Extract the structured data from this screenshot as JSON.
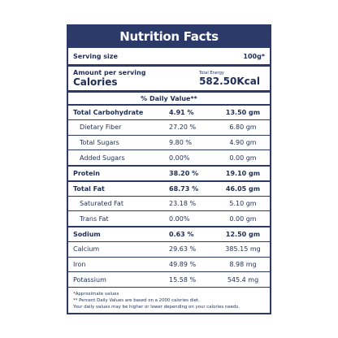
{
  "header": {
    "title": "Nutrition Facts"
  },
  "serving": {
    "label": "Serving size",
    "value": "100g*"
  },
  "calories": {
    "label1": "Amount per serving",
    "label2": "Calories",
    "energy_label": "Total Energy",
    "energy_value": "582.50Kcal"
  },
  "daily_value_header": "% Daily Value**",
  "rows": [
    {
      "name": "Total Carbohydrate",
      "percent": "4.91 %",
      "amount": "13.50 gm"
    },
    {
      "name": "Dietary Fiber",
      "percent": "27.20 %",
      "amount": "6.80 gm"
    },
    {
      "name": "Total Sugars",
      "percent": "9.80 %",
      "amount": "4.90 gm"
    },
    {
      "name": "Added Sugars",
      "percent": "0.00%",
      "amount": "0.00 gm"
    },
    {
      "name": "Protein",
      "percent": "38.20 %",
      "amount": "19.10 gm"
    },
    {
      "name": "Total Fat",
      "percent": "68.73 %",
      "amount": "46.05 gm"
    },
    {
      "name": "Saturated Fat",
      "percent": "23.18 %",
      "amount": "5.10 gm"
    },
    {
      "name": "Trans Fat",
      "percent": "0.00%",
      "amount": "0.00 gm"
    },
    {
      "name": "Sodium",
      "percent": "0.63 %",
      "amount": "12.50 gm"
    },
    {
      "name": "Calcium",
      "percent": "29.63 %",
      "amount": "385.15 mg"
    },
    {
      "name": "Iron",
      "percent": "49.89 %",
      "amount": "8.98 mg"
    },
    {
      "name": "Potassium",
      "percent": "15.58 %",
      "amount": "545.4 mg"
    }
  ],
  "footnotes": [
    "*Approximate values",
    "** Percent Daily Values are based on a 2000 calories diet.",
    "Your daily values may be higher or lower depending on your calories needs."
  ]
}
